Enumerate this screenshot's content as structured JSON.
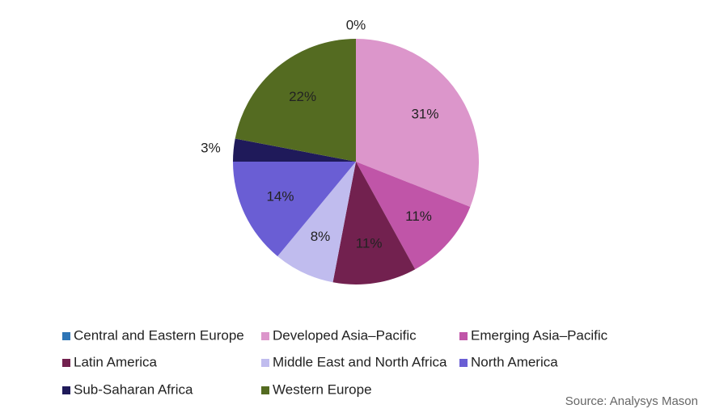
{
  "chart_data": {
    "type": "pie",
    "categories": [
      "Central and Eastern Europe",
      "Developed Asia–Pacific",
      "Emerging Asia–Pacific",
      "Latin America",
      "Middle East and North Africa",
      "North America",
      "Sub-Saharan Africa",
      "Western Europe"
    ],
    "values": [
      0,
      31,
      11,
      11,
      8,
      14,
      3,
      22
    ],
    "value_labels": [
      "0%",
      "31%",
      "11%",
      "11%",
      "8%",
      "14%",
      "3%",
      "22%"
    ],
    "colors": [
      "#2e75b6",
      "#dc96cb",
      "#c055a8",
      "#72214f",
      "#c0bcee",
      "#6a5ed4",
      "#1f1a5a",
      "#546b21"
    ],
    "legend": "bottom",
    "source": "Source: Analysys Mason"
  }
}
